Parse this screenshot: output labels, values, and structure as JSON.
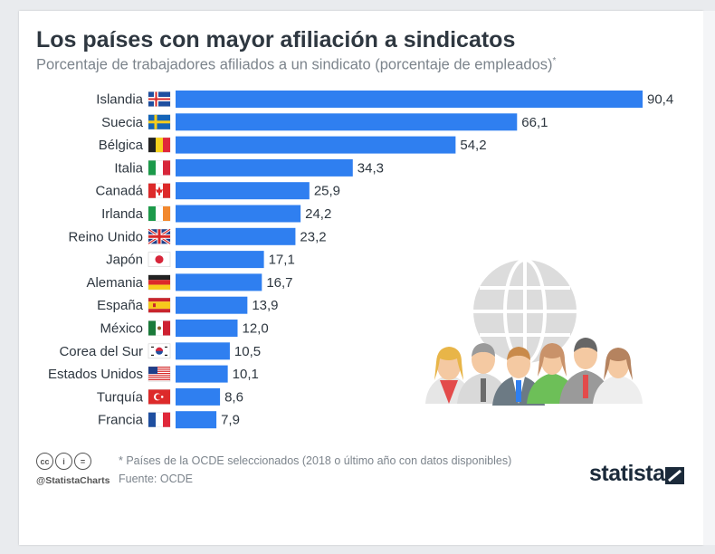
{
  "title": "Los países con mayor afiliación a sindicatos",
  "subtitle": "Porcentaje de trabajadores afiliados a un sindicato (porcentaje de empleados)",
  "subtitle_mark": "*",
  "footnote": "* Países de la OCDE seleccionados (2018 o último año con datos disponibles)",
  "source": "Fuente: OCDE",
  "credit": "@StatistaCharts",
  "brand": "statista",
  "license_icons": [
    "cc-icon",
    "by-icon",
    "nd-icon"
  ],
  "colors": {
    "bar": "#2f7ff0",
    "title": "#2e3740",
    "muted": "#7c848c",
    "brand": "#1b2a3a"
  },
  "chart_data": {
    "type": "bar",
    "orientation": "horizontal",
    "categories": [
      "Islandia",
      "Suecia",
      "Bélgica",
      "Italia",
      "Canadá",
      "Irlanda",
      "Reino Unido",
      "Japón",
      "Alemania",
      "España",
      "México",
      "Corea del Sur",
      "Estados Unidos",
      "Turquía",
      "Francia"
    ],
    "values": [
      90.4,
      66.1,
      54.2,
      34.3,
      25.9,
      24.2,
      23.2,
      17.1,
      16.7,
      13.9,
      12.0,
      10.5,
      10.1,
      8.6,
      7.9
    ],
    "value_labels": [
      "90,4",
      "66,1",
      "54,2",
      "34,3",
      "25,9",
      "24,2",
      "23,2",
      "17,1",
      "16,7",
      "13,9",
      "12,0",
      "10,5",
      "10,1",
      "8,6",
      "7,9"
    ],
    "flags": [
      "flag-iceland",
      "flag-sweden",
      "flag-belgium",
      "flag-italy",
      "flag-canada",
      "flag-ireland",
      "flag-uk",
      "flag-japan",
      "flag-germany",
      "flag-spain",
      "flag-mexico",
      "flag-south-korea",
      "flag-usa",
      "flag-turkey",
      "flag-france"
    ],
    "xlim": [
      0,
      90.4
    ],
    "grid": false,
    "legend": "none"
  }
}
